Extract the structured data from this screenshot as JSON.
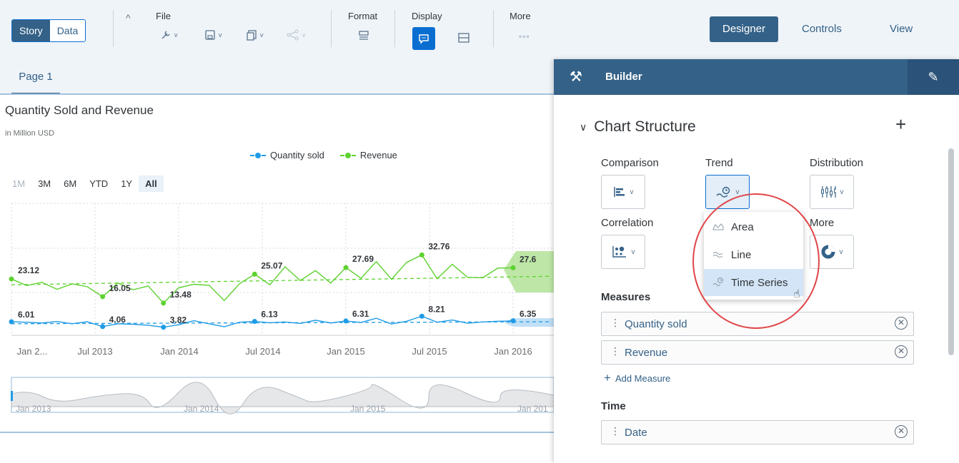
{
  "toolbar": {
    "story_label": "Story",
    "data_label": "Data",
    "file_label": "File",
    "format_label": "Format",
    "display_label": "Display",
    "more_label": "More",
    "right_tabs": [
      "Designer",
      "Controls",
      "View"
    ]
  },
  "page": {
    "tab_label": "Page 1"
  },
  "chart": {
    "title": "Quantity Sold and Revenue",
    "subtitle": "in Million USD",
    "legend": [
      "Quantity sold",
      "Revenue"
    ],
    "ranges": [
      "1M",
      "3M",
      "6M",
      "YTD",
      "1Y",
      "All"
    ],
    "selected_range": "All"
  },
  "chart_data": {
    "type": "line",
    "title": "Quantity Sold and Revenue",
    "subtitle": "in Million USD",
    "x_ticks": [
      "Jan 2...",
      "Jul 2013",
      "Jan 2014",
      "Jul 2014",
      "Jan 2015",
      "Jul 2015",
      "Jan 2016"
    ],
    "series": [
      {
        "name": "Revenue",
        "color": "#5dd22f",
        "labels": [
          [
            "23.12"
          ],
          [
            "16.05"
          ],
          [
            "13.48"
          ],
          [
            "25.07"
          ],
          [
            "27.69"
          ],
          [
            "32.76"
          ],
          [
            "27.6"
          ]
        ],
        "values": [
          23.12,
          20.5,
          21.8,
          19.0,
          21.2,
          20.0,
          16.05,
          21.5,
          18.8,
          20.3,
          13.48,
          19.6,
          21.0,
          20.6,
          14.5,
          21.2,
          25.07,
          20.8,
          28.0,
          22.5,
          26.5,
          21.5,
          27.69,
          23.4,
          30.1,
          23.0,
          29.8,
          32.76,
          23.2,
          29.0,
          23.8,
          23.6,
          27.5,
          27.6
        ],
        "trend": [
          20.8,
          24.2
        ]
      },
      {
        "name": "Quantity sold",
        "color": "#1e9be6",
        "labels": [
          [
            "6.01"
          ],
          [
            "4.06"
          ],
          [
            "3.82"
          ],
          [
            "6.13"
          ],
          [
            "6.31"
          ],
          [
            "8.21"
          ],
          [
            "6.35"
          ]
        ],
        "values": [
          6.01,
          5.8,
          5.5,
          6.1,
          5.2,
          6.0,
          4.06,
          5.2,
          5.0,
          4.6,
          3.82,
          4.8,
          6.4,
          5.2,
          4.0,
          5.8,
          6.13,
          5.6,
          5.9,
          5.3,
          6.6,
          5.5,
          6.31,
          5.7,
          7.4,
          5.1,
          6.2,
          8.21,
          5.8,
          6.7,
          5.4,
          5.9,
          6.2,
          6.35
        ],
        "trend": [
          5.2,
          6.0
        ]
      }
    ],
    "grid": true,
    "forecast": true
  },
  "navigator": {
    "ticks": [
      "Jan 2013",
      "Jan 2014",
      "Jan 2015",
      "Jan 201"
    ]
  },
  "builder": {
    "title": "Builder",
    "section_title": "Chart Structure",
    "categories": [
      "Comparison",
      "Trend",
      "Distribution",
      "Correlation",
      "More"
    ],
    "dropdown_items": [
      "Area",
      "Line",
      "Time Series"
    ],
    "selected_item": "Time Series",
    "measures_label": "Measures",
    "measures": [
      "Quantity sold",
      "Revenue"
    ],
    "add_measure_label": "Add Measure",
    "time_label": "Time",
    "time_dimension": "Date"
  }
}
